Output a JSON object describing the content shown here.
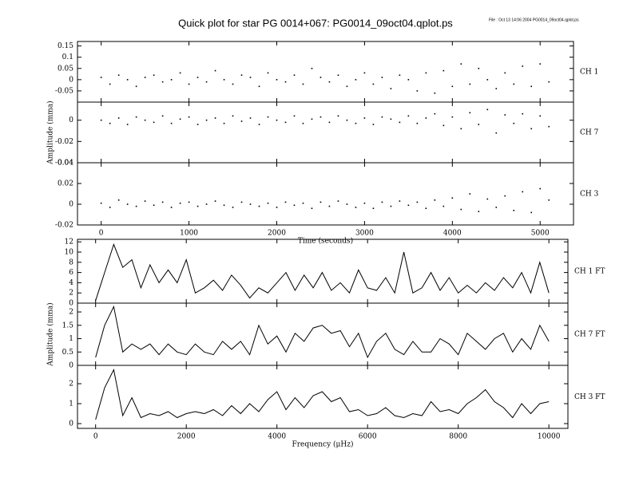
{
  "title": "Quick plot for star PG 0014+067:  PG0014_09oct04.qplot.ps",
  "file_note": "File : Oct 13 14:06 2004   PG0014_09oct04.qplot.ps",
  "chart_data": [
    {
      "type": "scatter",
      "label": "CH 1",
      "color": "#000000",
      "x": [
        0,
        100,
        200,
        300,
        400,
        500,
        600,
        700,
        800,
        900,
        1000,
        1100,
        1200,
        1300,
        1400,
        1500,
        1600,
        1700,
        1800,
        1900,
        2000,
        2100,
        2200,
        2300,
        2400,
        2500,
        2600,
        2700,
        2800,
        2900,
        3000,
        3100,
        3200,
        3300,
        3400,
        3500,
        3600,
        3700,
        3800,
        3900,
        4000,
        4100,
        4200,
        4300,
        4400,
        4500,
        4600,
        4700,
        4800,
        4900,
        5000,
        5100
      ],
      "values": [
        0.01,
        -0.02,
        0.02,
        0.0,
        -0.03,
        0.01,
        0.02,
        -0.01,
        0.0,
        0.03,
        -0.02,
        0.01,
        -0.01,
        0.04,
        0.0,
        -0.02,
        0.02,
        0.01,
        -0.03,
        0.03,
        0.0,
        -0.01,
        0.02,
        -0.02,
        0.05,
        0.01,
        -0.01,
        0.02,
        -0.03,
        0.0,
        0.03,
        -0.02,
        0.01,
        -0.04,
        0.02,
        0.0,
        -0.05,
        0.03,
        -0.06,
        0.04,
        -0.03,
        0.07,
        -0.02,
        0.05,
        0.0,
        -0.04,
        0.03,
        -0.02,
        0.06,
        -0.03,
        0.07,
        -0.01
      ],
      "xlim": [
        -270,
        5380
      ],
      "ylim": [
        -0.1,
        0.17
      ],
      "yticks": [
        -0.05,
        0,
        0.05,
        0.1,
        0.15
      ]
    },
    {
      "type": "scatter",
      "label": "CH 7",
      "color": "#000000",
      "ylabel": "Amplitude (mma)",
      "x": [
        0,
        100,
        200,
        300,
        400,
        500,
        600,
        700,
        800,
        900,
        1000,
        1100,
        1200,
        1300,
        1400,
        1500,
        1600,
        1700,
        1800,
        1900,
        2000,
        2100,
        2200,
        2300,
        2400,
        2500,
        2600,
        2700,
        2800,
        2900,
        3000,
        3100,
        3200,
        3300,
        3400,
        3500,
        3600,
        3700,
        3800,
        3900,
        4000,
        4100,
        4200,
        4300,
        4400,
        4500,
        4600,
        4700,
        4800,
        4900,
        5000,
        5100
      ],
      "values": [
        0,
        -0.003,
        0.002,
        -0.004,
        0.003,
        0,
        -0.002,
        0.004,
        -0.003,
        0.001,
        0.003,
        -0.004,
        0,
        0.002,
        -0.003,
        0.004,
        -0.001,
        0.002,
        -0.004,
        0.003,
        0,
        -0.002,
        0.004,
        -0.003,
        0.001,
        0.003,
        -0.002,
        0.004,
        0,
        -0.003,
        0.002,
        -0.004,
        0.003,
        0.001,
        -0.002,
        0.004,
        -0.003,
        0.002,
        0.006,
        -0.005,
        0.003,
        -0.008,
        0.007,
        -0.004,
        0.01,
        -0.012,
        0.005,
        -0.003,
        0.006,
        -0.008,
        0.004,
        -0.006
      ],
      "xlim": [
        -270,
        5380
      ],
      "ylim": [
        -0.04,
        0.017
      ],
      "yticks": [
        -0.04,
        -0.02,
        0
      ]
    },
    {
      "type": "scatter",
      "label": "CH 3",
      "color": "#000000",
      "xlabel": "Time (seconds)",
      "x": [
        0,
        100,
        200,
        300,
        400,
        500,
        600,
        700,
        800,
        900,
        1000,
        1100,
        1200,
        1300,
        1400,
        1500,
        1600,
        1700,
        1800,
        1900,
        2000,
        2100,
        2200,
        2300,
        2400,
        2500,
        2600,
        2700,
        2800,
        2900,
        3000,
        3100,
        3200,
        3300,
        3400,
        3500,
        3600,
        3700,
        3800,
        3900,
        4000,
        4100,
        4200,
        4300,
        4400,
        4500,
        4600,
        4700,
        4800,
        4900,
        5000,
        5100
      ],
      "values": [
        0.001,
        -0.003,
        0.004,
        0,
        -0.002,
        0.003,
        -0.001,
        0.002,
        -0.003,
        0.001,
        0.002,
        -0.002,
        0,
        0.003,
        -0.001,
        -0.003,
        0.002,
        0,
        -0.002,
        0.001,
        -0.003,
        0.002,
        -0.001,
        0.001,
        -0.004,
        0.002,
        -0.002,
        0.003,
        0,
        -0.003,
        0.001,
        -0.004,
        0.002,
        -0.002,
        0.003,
        -0.001,
        0.002,
        -0.004,
        0.004,
        -0.002,
        0.006,
        -0.005,
        0.01,
        -0.007,
        0.005,
        -0.003,
        0.008,
        -0.006,
        0.012,
        -0.008,
        0.015,
        0.004
      ],
      "xlim": [
        -270,
        5380
      ],
      "ylim": [
        -0.02,
        0.04
      ],
      "yticks": [
        -0.02,
        0,
        0.02,
        0.04
      ],
      "xticks": [
        0,
        1000,
        2000,
        3000,
        4000,
        5000
      ]
    },
    {
      "type": "line",
      "label": "CH 1 FT",
      "color": "#000000",
      "x": [
        0,
        200,
        400,
        600,
        800,
        1000,
        1200,
        1400,
        1600,
        1800,
        2000,
        2200,
        2400,
        2600,
        2800,
        3000,
        3200,
        3400,
        3600,
        3800,
        4000,
        4200,
        4400,
        4600,
        4800,
        5000,
        5200,
        5400,
        5600,
        5800,
        6000,
        6200,
        6400,
        6600,
        6800,
        7000,
        7200,
        7400,
        7600,
        7800,
        8000,
        8200,
        8400,
        8600,
        8800,
        9000,
        9200,
        9400,
        9600,
        9800,
        10000
      ],
      "values": [
        0.5,
        6,
        11.5,
        7,
        8.5,
        3,
        7.5,
        4,
        6.5,
        4,
        8.5,
        2,
        3,
        4.5,
        2.5,
        5.5,
        3.5,
        1,
        3,
        2,
        4,
        6,
        2.5,
        5.5,
        3,
        6,
        2.5,
        4,
        2,
        6.5,
        3,
        2.5,
        5,
        2,
        10,
        2,
        3,
        6,
        2.5,
        5,
        2,
        3.5,
        2,
        4,
        2.5,
        5,
        3,
        6,
        2,
        8,
        2
      ],
      "xlim": [
        -400,
        10420
      ],
      "ylim": [
        0,
        12.5
      ],
      "yticks": [
        0,
        2,
        4,
        6,
        8,
        10,
        12
      ]
    },
    {
      "type": "line",
      "label": "CH 7 FT",
      "color": "#000000",
      "ylabel": "Amplitude (mma)",
      "x": [
        0,
        200,
        400,
        600,
        800,
        1000,
        1200,
        1400,
        1600,
        1800,
        2000,
        2200,
        2400,
        2600,
        2800,
        3000,
        3200,
        3400,
        3600,
        3800,
        4000,
        4200,
        4400,
        4600,
        4800,
        5000,
        5200,
        5400,
        5600,
        5800,
        6000,
        6200,
        6400,
        6600,
        6800,
        7000,
        7200,
        7400,
        7600,
        7800,
        8000,
        8200,
        8400,
        8600,
        8800,
        9000,
        9200,
        9400,
        9600,
        9800,
        10000
      ],
      "values": [
        0.3,
        1.5,
        2.2,
        0.5,
        0.8,
        0.6,
        0.8,
        0.4,
        0.8,
        0.5,
        0.4,
        0.8,
        0.5,
        0.4,
        0.9,
        0.6,
        0.9,
        0.4,
        1.5,
        0.8,
        1.1,
        0.5,
        1.2,
        0.9,
        1.4,
        1.5,
        1.2,
        1.3,
        0.7,
        1.2,
        0.3,
        0.9,
        1.2,
        0.6,
        0.4,
        0.9,
        0.5,
        0.5,
        1.0,
        0.8,
        0.4,
        1.2,
        0.9,
        0.6,
        1.0,
        1.2,
        0.5,
        1.0,
        0.6,
        1.5,
        0.9
      ],
      "xlim": [
        -400,
        10420
      ],
      "ylim": [
        0,
        2.33
      ],
      "yticks": [
        0,
        0.5,
        1,
        1.5,
        2
      ]
    },
    {
      "type": "line",
      "label": "CH 3 FT",
      "color": "#000000",
      "xlabel": "Frequency (μHz)",
      "x": [
        0,
        200,
        400,
        600,
        800,
        1000,
        1200,
        1400,
        1600,
        1800,
        2000,
        2200,
        2400,
        2600,
        2800,
        3000,
        3200,
        3400,
        3600,
        3800,
        4000,
        4200,
        4400,
        4600,
        4800,
        5000,
        5200,
        5400,
        5600,
        5800,
        6000,
        6200,
        6400,
        6600,
        6800,
        7000,
        7200,
        7400,
        7600,
        7800,
        8000,
        8200,
        8400,
        8600,
        8800,
        9000,
        9200,
        9400,
        9600,
        9800,
        10000
      ],
      "values": [
        0.2,
        1.8,
        2.7,
        0.4,
        1.3,
        0.3,
        0.5,
        0.4,
        0.6,
        0.3,
        0.5,
        0.6,
        0.5,
        0.7,
        0.4,
        0.9,
        0.5,
        1.0,
        0.6,
        1.2,
        1.6,
        0.7,
        1.3,
        0.8,
        1.4,
        1.6,
        1.1,
        1.3,
        0.6,
        0.7,
        0.4,
        0.5,
        0.8,
        0.4,
        0.3,
        0.5,
        0.4,
        1.1,
        0.6,
        0.7,
        0.5,
        1.0,
        1.3,
        1.7,
        1.1,
        0.8,
        0.3,
        1.0,
        0.5,
        1.0,
        1.1
      ],
      "xlim": [
        -400,
        10420
      ],
      "ylim": [
        -0.24,
        2.92
      ],
      "yticks": [
        0,
        1,
        2
      ],
      "xticks": [
        0,
        2000,
        4000,
        6000,
        8000,
        10000
      ]
    }
  ]
}
